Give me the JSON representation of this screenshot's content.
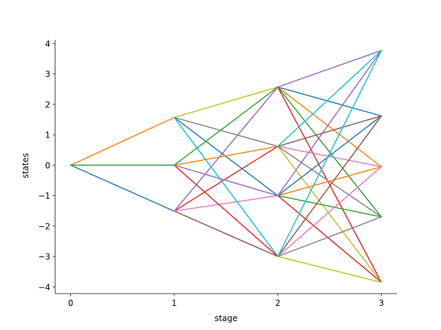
{
  "chart_data": {
    "type": "line",
    "title": "",
    "xlabel": "stage",
    "ylabel": "states",
    "xlim": [
      -0.15,
      3.15
    ],
    "ylim": [
      -4.22,
      4.12
    ],
    "xticks": [
      "0",
      "1",
      "2",
      "3"
    ],
    "yticks": [
      -4,
      -3,
      -2,
      -1,
      0,
      1,
      2,
      3,
      4
    ],
    "grid": false,
    "legend": "none",
    "states": [
      [
        0
      ],
      [
        -1.51,
        0,
        1.57
      ],
      [
        -3.0,
        -1.0,
        0.62,
        2.57
      ],
      [
        -3.85,
        -1.7,
        -0.05,
        1.62,
        3.77
      ]
    ],
    "series": [
      {
        "color": "#1f77b4",
        "x": [
          0,
          1
        ],
        "y": [
          0,
          -1.51
        ]
      },
      {
        "color": "#ff7f0e",
        "x": [
          0,
          1
        ],
        "y": [
          0,
          1.57
        ]
      },
      {
        "color": "#2ca02c",
        "x": [
          0,
          1
        ],
        "y": [
          0,
          0
        ]
      },
      {
        "color": "#d62728",
        "x": [
          1,
          2
        ],
        "y": [
          -1.51,
          0.62
        ]
      },
      {
        "color": "#9467bd",
        "x": [
          1,
          2
        ],
        "y": [
          -1.51,
          2.57
        ]
      },
      {
        "color": "#8c564b",
        "x": [
          1,
          2
        ],
        "y": [
          -1.51,
          -3.0
        ]
      },
      {
        "color": "#e377c2",
        "x": [
          1,
          2
        ],
        "y": [
          -1.51,
          -1.0
        ]
      },
      {
        "color": "#1f77b4",
        "x": [
          1,
          2
        ],
        "y": [
          1.57,
          -1.0
        ]
      },
      {
        "color": "#7f7f7f",
        "x": [
          1,
          2
        ],
        "y": [
          1.57,
          0.62
        ]
      },
      {
        "color": "#bcbd22",
        "x": [
          1,
          2
        ],
        "y": [
          1.57,
          2.57
        ]
      },
      {
        "color": "#17becf",
        "x": [
          1,
          2
        ],
        "y": [
          1.57,
          -3.0
        ]
      },
      {
        "color": "#ff7f0e",
        "x": [
          1,
          2
        ],
        "y": [
          0,
          0.62
        ]
      },
      {
        "color": "#2ca02c",
        "x": [
          1,
          2
        ],
        "y": [
          0,
          2.57
        ]
      },
      {
        "color": "#d62728",
        "x": [
          1,
          2
        ],
        "y": [
          0,
          -3.0
        ]
      },
      {
        "color": "#9467bd",
        "x": [
          1,
          2
        ],
        "y": [
          0,
          -1.0
        ]
      },
      {
        "color": "#1f77b4",
        "x": [
          2,
          3
        ],
        "y": [
          2.57,
          1.62
        ]
      },
      {
        "color": "#ff7f0e",
        "x": [
          2,
          3
        ],
        "y": [
          2.57,
          -0.05
        ]
      },
      {
        "color": "#2ca02c",
        "x": [
          2,
          3
        ],
        "y": [
          2.57,
          -1.7
        ]
      },
      {
        "color": "#d62728",
        "x": [
          2,
          3
        ],
        "y": [
          2.57,
          -3.85
        ]
      },
      {
        "color": "#9467bd",
        "x": [
          2,
          3
        ],
        "y": [
          2.57,
          3.77
        ]
      },
      {
        "color": "#8c564b",
        "x": [
          2,
          3
        ],
        "y": [
          0.62,
          1.62
        ]
      },
      {
        "color": "#e377c2",
        "x": [
          2,
          3
        ],
        "y": [
          0.62,
          -0.05
        ]
      },
      {
        "color": "#7f7f7f",
        "x": [
          2,
          3
        ],
        "y": [
          0.62,
          -1.7
        ]
      },
      {
        "color": "#bcbd22",
        "x": [
          2,
          3
        ],
        "y": [
          0.62,
          -3.85
        ]
      },
      {
        "color": "#17becf",
        "x": [
          2,
          3
        ],
        "y": [
          0.62,
          3.77
        ]
      },
      {
        "color": "#1f77b4",
        "x": [
          2,
          3
        ],
        "y": [
          -1.0,
          1.62
        ]
      },
      {
        "color": "#ff7f0e",
        "x": [
          2,
          3
        ],
        "y": [
          -1.0,
          -0.05
        ]
      },
      {
        "color": "#2ca02c",
        "x": [
          2,
          3
        ],
        "y": [
          -1.0,
          -1.7
        ]
      },
      {
        "color": "#d62728",
        "x": [
          2,
          3
        ],
        "y": [
          -1.0,
          -3.85
        ]
      },
      {
        "color": "#9467bd",
        "x": [
          2,
          3
        ],
        "y": [
          -1.0,
          3.77
        ]
      },
      {
        "color": "#8c564b",
        "x": [
          2,
          3
        ],
        "y": [
          -3.0,
          1.62
        ]
      },
      {
        "color": "#e377c2",
        "x": [
          2,
          3
        ],
        "y": [
          -3.0,
          -0.05
        ]
      },
      {
        "color": "#7f7f7f",
        "x": [
          2,
          3
        ],
        "y": [
          -3.0,
          -1.7
        ]
      },
      {
        "color": "#bcbd22",
        "x": [
          2,
          3
        ],
        "y": [
          -3.0,
          -3.85
        ]
      },
      {
        "color": "#17becf",
        "x": [
          2,
          3
        ],
        "y": [
          -3.0,
          3.77
        ]
      }
    ]
  }
}
